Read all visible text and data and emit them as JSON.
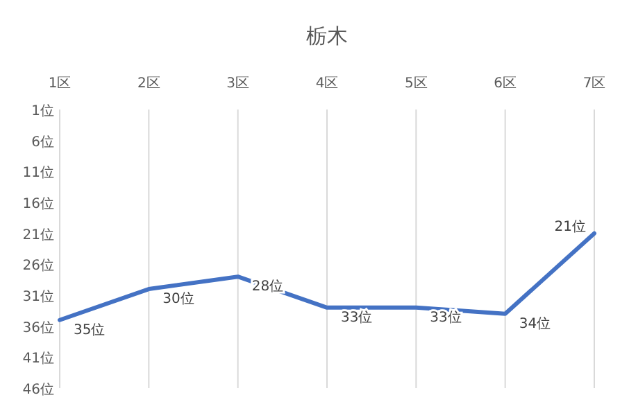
{
  "chart_data": {
    "type": "line",
    "title": "栃木",
    "categories": [
      "1区",
      "2区",
      "3区",
      "4区",
      "5区",
      "6区",
      "7区"
    ],
    "series": [
      {
        "color": "#4472c4",
        "values": [
          35,
          30,
          28,
          33,
          33,
          34,
          21
        ],
        "value_labels": [
          "35位",
          "30位",
          "28位",
          "33位",
          "33位",
          "34位",
          "21位"
        ]
      }
    ],
    "ylim": [
      46,
      1
    ],
    "yticks": [
      {
        "value": 1,
        "label": "1位"
      },
      {
        "value": 6,
        "label": "6位"
      },
      {
        "value": 11,
        "label": "11位"
      },
      {
        "value": 16,
        "label": "16位"
      },
      {
        "value": 21,
        "label": "21位"
      },
      {
        "value": 26,
        "label": "26位"
      },
      {
        "value": 31,
        "label": "31位"
      },
      {
        "value": 36,
        "label": "36位"
      },
      {
        "value": 41,
        "label": "41位"
      },
      {
        "value": 46,
        "label": "46位"
      }
    ],
    "grid": "x",
    "marker": "none",
    "line_style": "solid"
  }
}
